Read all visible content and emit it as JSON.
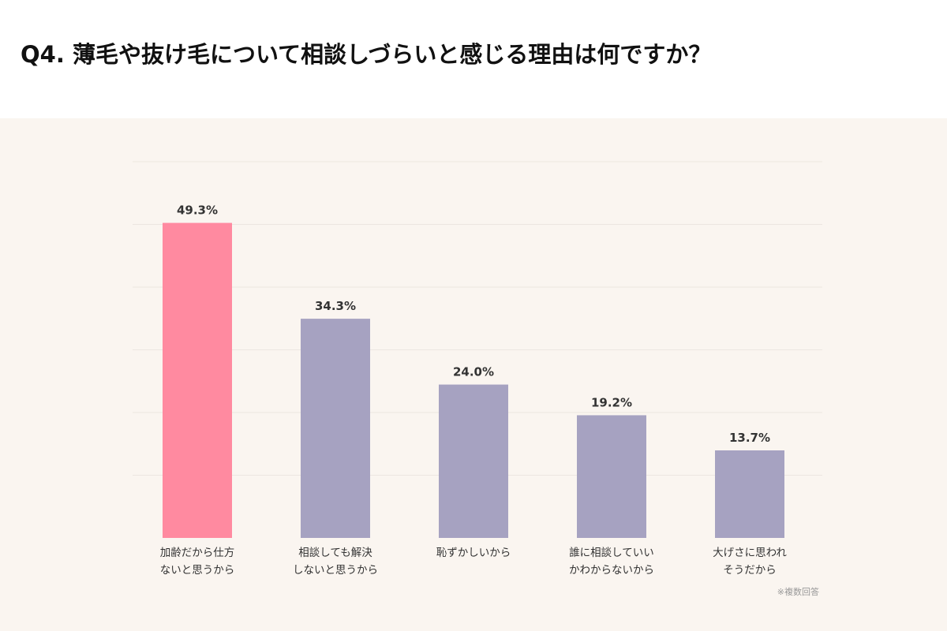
{
  "page": {
    "title": "Q4. 薄毛や抜け毛について相談しづらいと感じる理由は何ですか？",
    "footnote": "※複数回答"
  },
  "colors": {
    "background": "#faf5f0",
    "highlight_bar": "#ff8aa0",
    "default_bar": "#a6a2c1",
    "gridline": "#ece6e1",
    "label_text": "#333333"
  },
  "chart_data": {
    "type": "bar",
    "title": "",
    "xlabel": "",
    "ylabel": "",
    "ylim": [
      0,
      59
    ],
    "grid": true,
    "unit": "%",
    "categories": [
      [
        "加齢だから仕方",
        "ないと思うから"
      ],
      [
        "相談しても解決",
        "しないと思うから"
      ],
      [
        "恥ずかしいから"
      ],
      [
        "誰に相談していい",
        "かわからないから"
      ],
      [
        "大げさに思われ",
        "そうだから"
      ]
    ],
    "values": [
      49.3,
      34.3,
      24.0,
      19.2,
      13.7
    ],
    "value_labels": [
      "49.3%",
      "34.3%",
      "24.0%",
      "19.2%",
      "13.7%"
    ],
    "highlight_index": 0
  }
}
